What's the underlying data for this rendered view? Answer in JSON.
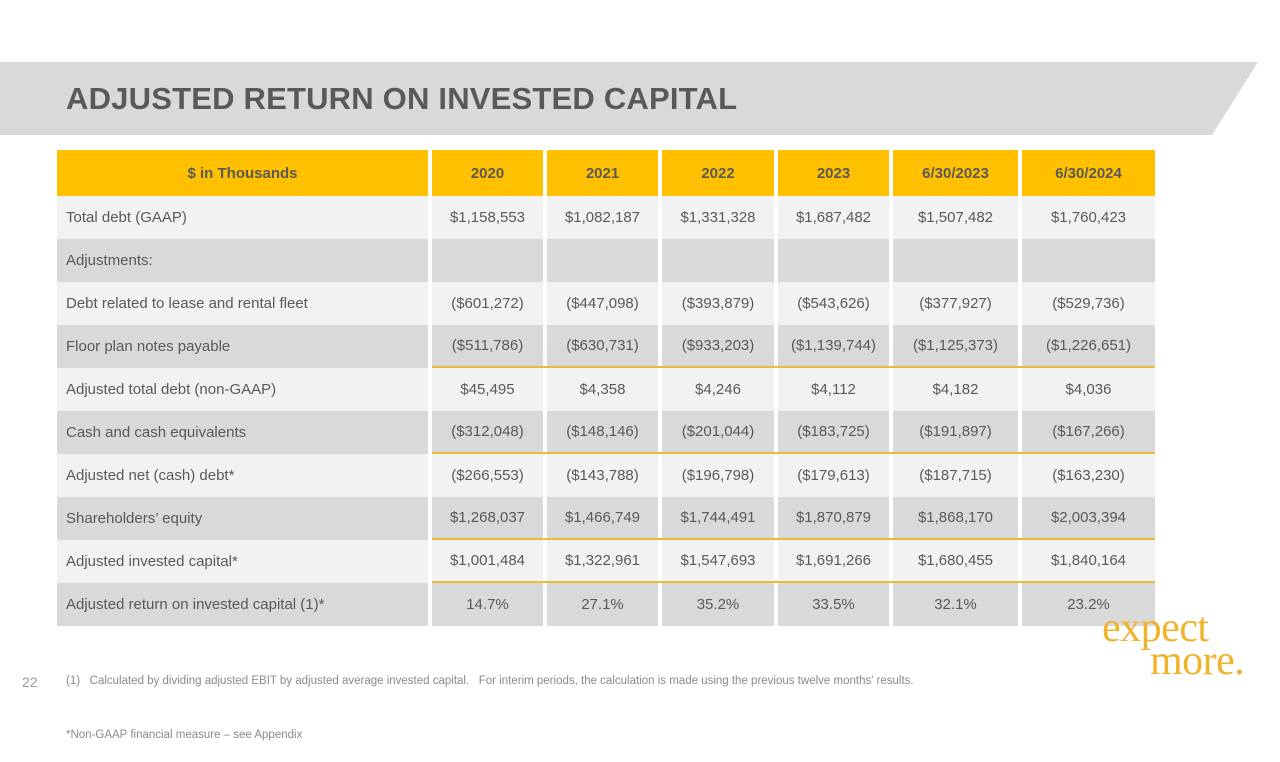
{
  "slide": {
    "title": "ADJUSTED RETURN ON INVESTED CAPITAL",
    "page_number": "22",
    "footnotes": [
      "(1)   Calculated by dividing adjusted EBIT by adjusted average invested capital.   For interim periods, the calculation is made using the previous twelve months’ results.",
      "*Non-GAAP financial measure – see Appendix"
    ],
    "logo": {
      "line1": "expect",
      "line2": "more."
    }
  },
  "colors": {
    "header_gold": "#ffc000",
    "rule_gold": "#e9ba3d",
    "logo_gold": "#f0b32d",
    "banner_gray": "#d9d9d9",
    "row_light": "#f2f2f2",
    "row_dark": "#d9d9d9",
    "text_gray": "#595959",
    "footnote_gray": "#8a8a8a"
  },
  "chart_data": {
    "type": "table",
    "header": [
      "$ in Thousands",
      "2020",
      "2021",
      "2022",
      "2023",
      "6/30/2023",
      "6/30/2024"
    ],
    "rows": [
      {
        "label": "Total debt (GAAP)",
        "values": [
          "$1,158,553",
          "$1,082,187",
          "$1,331,328",
          "$1,687,482",
          "$1,507,482",
          "$1,760,423"
        ],
        "total_rule": false
      },
      {
        "label": "Adjustments:",
        "values": [
          "",
          "",
          "",
          "",
          "",
          ""
        ],
        "total_rule": false
      },
      {
        "label": "Debt related to lease and rental fleet",
        "values": [
          "($601,272)",
          "($447,098)",
          "($393,879)",
          "($543,626)",
          "($377,927)",
          "($529,736)"
        ],
        "total_rule": false
      },
      {
        "label": "Floor plan notes payable",
        "values": [
          "($511,786)",
          "($630,731)",
          "($933,203)",
          "($1,139,744)",
          "($1,125,373)",
          "($1,226,651)"
        ],
        "total_rule": true
      },
      {
        "label": "Adjusted total debt (non-GAAP)",
        "values": [
          "$45,495",
          "$4,358",
          "$4,246",
          "$4,112",
          "$4,182",
          "$4,036"
        ],
        "total_rule": false
      },
      {
        "label": "Cash and cash equivalents",
        "values": [
          "($312,048)",
          "($148,146)",
          "($201,044)",
          "($183,725)",
          "($191,897)",
          "($167,266)"
        ],
        "total_rule": true
      },
      {
        "label": "Adjusted net (cash) debt*",
        "values": [
          "($266,553)",
          "($143,788)",
          "($196,798)",
          "($179,613)",
          "($187,715)",
          "($163,230)"
        ],
        "total_rule": false
      },
      {
        "label": "Shareholders’ equity",
        "values": [
          "$1,268,037",
          "$1,466,749",
          "$1,744,491",
          "$1,870,879",
          "$1,868,170",
          "$2,003,394"
        ],
        "total_rule": true
      },
      {
        "label": "Adjusted invested capital*",
        "values": [
          "$1,001,484",
          "$1,322,961",
          "$1,547,693",
          "$1,691,266",
          "$1,680,455",
          "$1,840,164"
        ],
        "total_rule": true
      },
      {
        "label": "Adjusted return on invested capital (1)*",
        "values": [
          "14.7%",
          "27.1%",
          "35.2%",
          "33.5%",
          "32.1%",
          "23.2%"
        ],
        "total_rule": false
      }
    ]
  }
}
